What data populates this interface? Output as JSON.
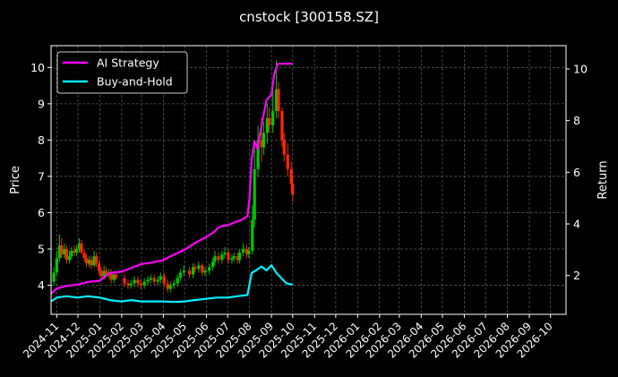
{
  "chart_data": {
    "type": "line",
    "title": "cnstock [300158.SZ]",
    "ylabel_left": "Price",
    "ylabel_right": "Return",
    "grid": true,
    "legend_position": "top-left",
    "xlim": [
      "2024-10-24",
      "2026-10-23"
    ],
    "ylim_left": [
      3.2,
      10.6
    ],
    "ylim_right": [
      0.5,
      10.9
    ],
    "yticks_left": [
      4,
      5,
      6,
      7,
      8,
      9,
      10
    ],
    "yticks_right": [
      2,
      4,
      6,
      8,
      10
    ],
    "x_tick_labels": [
      "2024-11",
      "2024-12",
      "2025-01",
      "2025-02",
      "2025-03",
      "2025-04",
      "2025-05",
      "2025-06",
      "2025-07",
      "2025-08",
      "2025-09",
      "2025-10",
      "2025-11",
      "2025-12",
      "2026-01",
      "2026-02",
      "2026-03",
      "2026-04",
      "2026-05",
      "2026-06",
      "2026-07",
      "2026-08",
      "2026-09",
      "2026-10"
    ],
    "x_tick_dates": [
      "2024-11-01",
      "2024-12-01",
      "2025-01-01",
      "2025-02-01",
      "2025-03-01",
      "2025-04-01",
      "2025-05-01",
      "2025-06-01",
      "2025-07-01",
      "2025-08-01",
      "2025-09-01",
      "2025-10-01",
      "2025-11-01",
      "2025-12-01",
      "2026-01-01",
      "2026-02-01",
      "2026-03-01",
      "2026-04-01",
      "2026-05-01",
      "2026-06-01",
      "2026-07-01",
      "2026-08-01",
      "2026-09-01",
      "2026-10-01"
    ],
    "price_axis": "left",
    "return_axis": "right",
    "candles": {
      "up_color": "#00c800",
      "down_color": "#ff2a00",
      "x": [
        "2024-10-28",
        "2024-11-01",
        "2024-11-05",
        "2024-11-08",
        "2024-11-12",
        "2024-11-15",
        "2024-11-19",
        "2024-11-22",
        "2024-11-26",
        "2024-11-29",
        "2024-12-03",
        "2024-12-06",
        "2024-12-10",
        "2024-12-13",
        "2024-12-17",
        "2024-12-20",
        "2024-12-24",
        "2024-12-27",
        "2024-12-31",
        "2025-01-03",
        "2025-01-07",
        "2025-01-10",
        "2025-01-14",
        "2025-01-17",
        "2025-01-21",
        "2025-01-24",
        "2025-02-05",
        "2025-02-10",
        "2025-02-14",
        "2025-02-19",
        "2025-02-24",
        "2025-02-28",
        "2025-03-05",
        "2025-03-10",
        "2025-03-14",
        "2025-03-19",
        "2025-03-24",
        "2025-03-28",
        "2025-04-02",
        "2025-04-07",
        "2025-04-11",
        "2025-04-16",
        "2025-04-21",
        "2025-04-25",
        "2025-04-30",
        "2025-05-08",
        "2025-05-13",
        "2025-05-16",
        "2025-05-21",
        "2025-05-26",
        "2025-05-30",
        "2025-06-05",
        "2025-06-10",
        "2025-06-13",
        "2025-06-18",
        "2025-06-23",
        "2025-06-27",
        "2025-07-02",
        "2025-07-07",
        "2025-07-10",
        "2025-07-15",
        "2025-07-18",
        "2025-07-23",
        "2025-07-28",
        "2025-07-31",
        "2025-08-05",
        "2025-08-08",
        "2025-08-13",
        "2025-08-18",
        "2025-08-21",
        "2025-08-26",
        "2025-08-29",
        "2025-09-03",
        "2025-09-08",
        "2025-09-11",
        "2025-09-16",
        "2025-09-19",
        "2025-09-24",
        "2025-09-29",
        "2025-10-01"
      ],
      "open": [
        4.1,
        4.35,
        4.75,
        5.1,
        4.85,
        5.0,
        4.7,
        4.8,
        4.95,
        4.9,
        5.0,
        5.15,
        4.9,
        4.75,
        4.6,
        4.7,
        4.55,
        4.8,
        4.6,
        4.4,
        4.25,
        4.4,
        4.3,
        4.35,
        4.15,
        4.3,
        4.2,
        4.05,
        4.0,
        4.05,
        4.15,
        4.05,
        4.0,
        4.1,
        4.15,
        4.2,
        4.1,
        4.15,
        4.25,
        4.05,
        3.9,
        4.0,
        4.05,
        4.2,
        4.35,
        4.4,
        4.3,
        4.5,
        4.45,
        4.55,
        4.35,
        4.4,
        4.5,
        4.65,
        4.8,
        4.7,
        4.85,
        4.9,
        4.7,
        4.75,
        4.8,
        4.7,
        4.9,
        5.0,
        4.85,
        4.95,
        5.8,
        7.2,
        8.0,
        7.8,
        8.2,
        8.6,
        8.4,
        8.8,
        9.4,
        8.8,
        8.0,
        7.6,
        7.2,
        6.8
      ],
      "close": [
        4.35,
        4.75,
        5.1,
        4.85,
        5.0,
        4.7,
        4.8,
        4.95,
        4.9,
        5.0,
        5.15,
        4.9,
        4.75,
        4.6,
        4.7,
        4.55,
        4.8,
        4.6,
        4.4,
        4.25,
        4.4,
        4.3,
        4.35,
        4.15,
        4.3,
        4.2,
        4.05,
        4.0,
        4.05,
        4.15,
        4.05,
        4.0,
        4.1,
        4.15,
        4.2,
        4.1,
        4.15,
        4.25,
        4.05,
        3.9,
        4.0,
        4.05,
        4.2,
        4.35,
        4.4,
        4.3,
        4.5,
        4.45,
        4.55,
        4.35,
        4.4,
        4.5,
        4.65,
        4.8,
        4.7,
        4.85,
        4.9,
        4.7,
        4.75,
        4.8,
        4.7,
        4.9,
        5.0,
        4.85,
        4.95,
        5.8,
        7.2,
        8.0,
        7.8,
        8.2,
        8.6,
        8.4,
        8.8,
        9.4,
        8.8,
        8.0,
        7.6,
        7.2,
        6.8,
        6.5
      ],
      "high": [
        4.5,
        4.95,
        5.4,
        5.3,
        5.15,
        5.1,
        4.95,
        5.05,
        5.1,
        5.1,
        5.3,
        5.25,
        5.0,
        4.85,
        4.8,
        4.8,
        4.95,
        4.9,
        4.7,
        4.5,
        4.55,
        4.5,
        4.45,
        4.45,
        4.4,
        4.35,
        4.3,
        4.15,
        4.15,
        4.25,
        4.25,
        4.15,
        4.2,
        4.25,
        4.3,
        4.3,
        4.25,
        4.35,
        4.35,
        4.15,
        4.1,
        4.15,
        4.3,
        4.45,
        4.55,
        4.5,
        4.6,
        4.6,
        4.65,
        4.6,
        4.5,
        4.6,
        4.75,
        4.95,
        4.9,
        4.95,
        5.05,
        5.0,
        4.85,
        4.9,
        4.9,
        5.0,
        5.15,
        5.1,
        5.05,
        6.2,
        7.8,
        8.4,
        8.6,
        8.5,
        9.0,
        8.9,
        9.4,
        10.2,
        9.6,
        8.9,
        8.2,
        7.9,
        7.4,
        7.0
      ],
      "low": [
        4.0,
        4.25,
        4.65,
        4.75,
        4.75,
        4.6,
        4.6,
        4.7,
        4.8,
        4.8,
        4.9,
        4.85,
        4.65,
        4.5,
        4.5,
        4.45,
        4.5,
        4.5,
        4.3,
        4.15,
        4.15,
        4.2,
        4.2,
        4.05,
        4.05,
        4.15,
        3.95,
        3.9,
        3.9,
        3.95,
        3.95,
        3.9,
        3.9,
        4.0,
        4.05,
        4.0,
        4.0,
        4.05,
        3.95,
        3.8,
        3.8,
        3.9,
        3.95,
        4.1,
        4.25,
        4.2,
        4.2,
        4.35,
        4.35,
        4.25,
        4.25,
        4.3,
        4.4,
        4.55,
        4.6,
        4.6,
        4.75,
        4.6,
        4.6,
        4.65,
        4.6,
        4.6,
        4.8,
        4.75,
        4.75,
        4.85,
        5.6,
        7.0,
        7.4,
        7.6,
        7.9,
        8.2,
        8.2,
        8.6,
        8.6,
        7.8,
        7.4,
        7.0,
        6.6,
        6.3
      ]
    },
    "series": [
      {
        "name": "AI Strategy",
        "color": "#ff00ff",
        "axis": "right",
        "x": [
          "2024-10-24",
          "2024-11-01",
          "2024-11-15",
          "2024-12-01",
          "2024-12-15",
          "2025-01-01",
          "2025-01-15",
          "2025-02-01",
          "2025-02-15",
          "2025-03-01",
          "2025-03-15",
          "2025-04-01",
          "2025-04-15",
          "2025-05-01",
          "2025-05-15",
          "2025-06-01",
          "2025-06-10",
          "2025-06-20",
          "2025-07-01",
          "2025-07-10",
          "2025-07-20",
          "2025-07-29",
          "2025-08-01",
          "2025-08-04",
          "2025-08-08",
          "2025-08-12",
          "2025-08-18",
          "2025-08-25",
          "2025-09-01",
          "2025-09-05",
          "2025-09-10",
          "2025-09-20",
          "2025-10-01"
        ],
        "values": [
          1.3,
          1.5,
          1.6,
          1.65,
          1.75,
          1.8,
          2.1,
          2.15,
          2.3,
          2.45,
          2.5,
          2.6,
          2.8,
          3.0,
          3.25,
          3.5,
          3.65,
          3.9,
          3.95,
          4.05,
          4.15,
          4.3,
          5.0,
          6.5,
          7.2,
          6.9,
          7.8,
          8.8,
          9.0,
          9.8,
          10.2,
          10.2,
          10.2
        ]
      },
      {
        "name": "Buy-and-Hold",
        "color": "#00f0ff",
        "axis": "right",
        "x": [
          "2024-10-24",
          "2024-11-01",
          "2024-11-15",
          "2024-12-01",
          "2024-12-15",
          "2025-01-01",
          "2025-01-15",
          "2025-02-01",
          "2025-02-15",
          "2025-03-01",
          "2025-03-15",
          "2025-04-01",
          "2025-04-15",
          "2025-05-01",
          "2025-05-15",
          "2025-06-01",
          "2025-06-15",
          "2025-07-01",
          "2025-07-15",
          "2025-07-29",
          "2025-08-04",
          "2025-08-10",
          "2025-08-18",
          "2025-08-25",
          "2025-09-01",
          "2025-09-08",
          "2025-09-15",
          "2025-09-22",
          "2025-10-01"
        ],
        "values": [
          1.0,
          1.15,
          1.2,
          1.15,
          1.2,
          1.15,
          1.05,
          1.0,
          1.05,
          1.0,
          1.0,
          1.0,
          0.98,
          1.0,
          1.05,
          1.1,
          1.15,
          1.15,
          1.2,
          1.25,
          2.1,
          2.2,
          2.35,
          2.2,
          2.4,
          2.1,
          1.9,
          1.7,
          1.65
        ]
      }
    ]
  }
}
